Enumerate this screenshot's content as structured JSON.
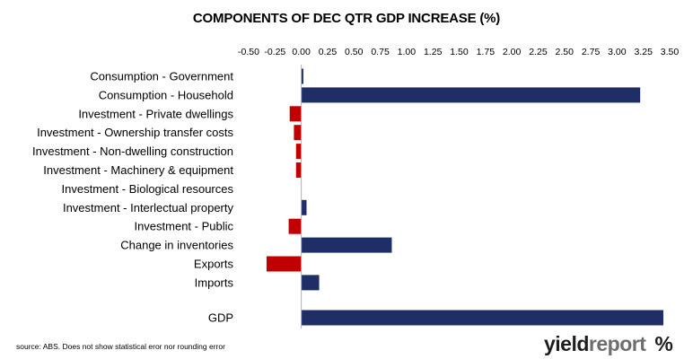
{
  "chart_data": {
    "type": "bar",
    "orientation": "horizontal",
    "title": "COMPONENTS OF DEC QTR GDP INCREASE (%)",
    "xlabel": "",
    "ylabel": "",
    "xlim": [
      -0.5,
      3.5
    ],
    "x_ticks": [
      "-0.50",
      "-0.25",
      "0.00",
      "0.25",
      "0.50",
      "0.75",
      "1.00",
      "1.25",
      "1.50",
      "1.75",
      "2.00",
      "2.25",
      "2.50",
      "2.75",
      "3.00",
      "3.25",
      "3.50"
    ],
    "axis_position": "top",
    "grid": false,
    "legend": "none",
    "categories": [
      "Consumption - Government",
      "Consumption - Household",
      "Investment - Private dwellings",
      "Investment - Ownership transfer costs",
      "Investment - Non-dwelling construction",
      "Investment - Machinery & equipment",
      "Investment - Biological resources",
      "Investment - Interlectual property",
      "Investment - Public",
      "Change in inventories",
      "Exports",
      "Imports",
      "GDP"
    ],
    "values": [
      0.02,
      3.22,
      -0.11,
      -0.07,
      -0.05,
      -0.05,
      0.0,
      0.05,
      -0.12,
      0.86,
      -0.33,
      0.17,
      3.44
    ],
    "colors": {
      "positive": "#1f2e66",
      "negative": "#c00000"
    }
  },
  "footer": {
    "source": "source: ABS. Does not show statistical eror nor rounding error"
  },
  "logo": {
    "yield": "yield",
    "report": "report",
    "symbol": "%"
  }
}
